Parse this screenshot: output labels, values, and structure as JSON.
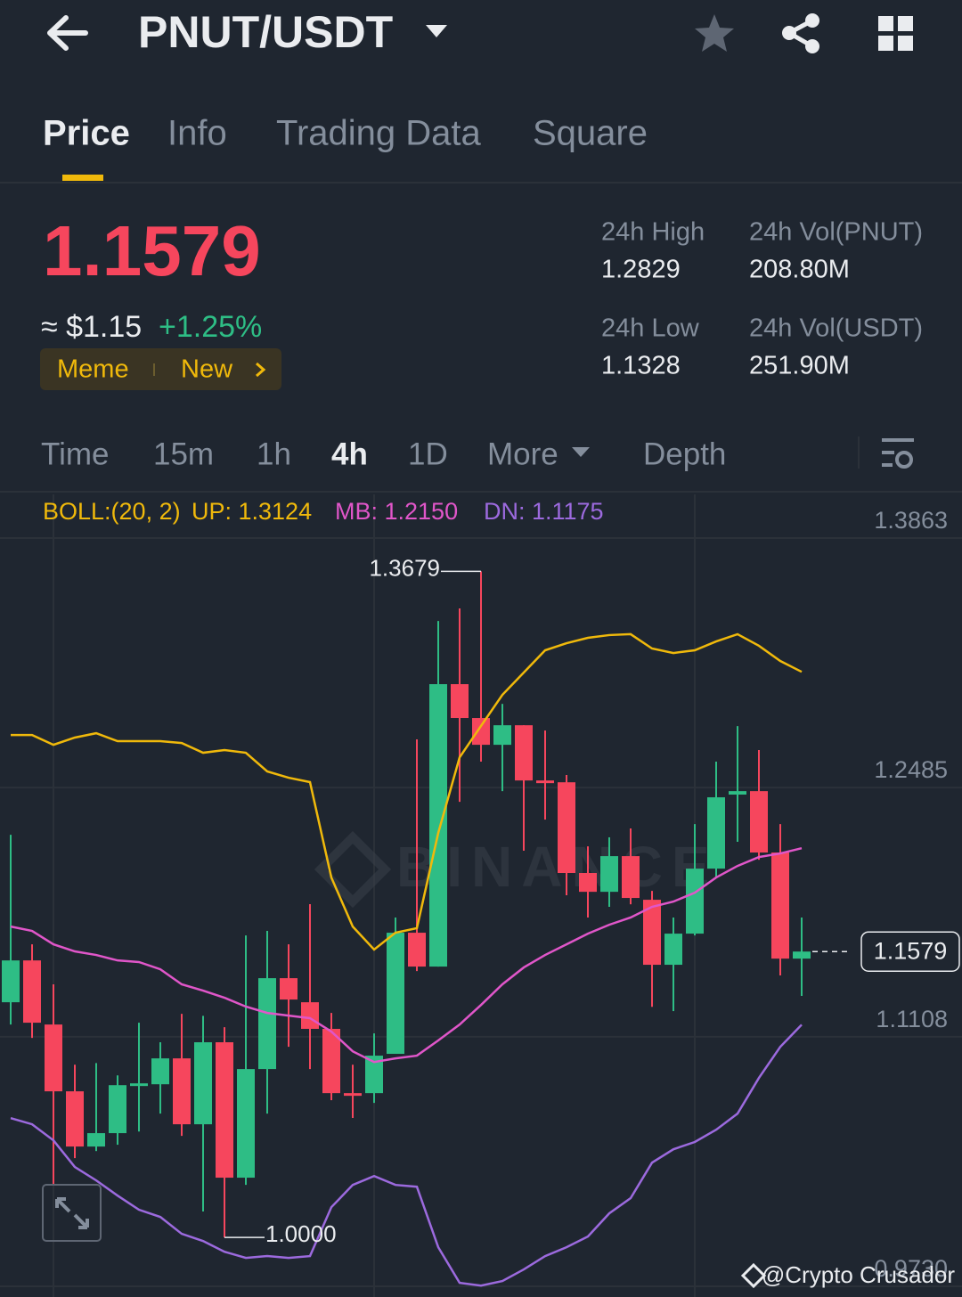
{
  "header": {
    "pair": "PNUT/USDT"
  },
  "tabs": [
    "Price",
    "Info",
    "Trading Data",
    "Square"
  ],
  "ticker": {
    "price": "1.1579",
    "fiat": "≈ $1.15",
    "change": "+1.25%",
    "tags": [
      "Meme",
      "New"
    ],
    "stats": [
      {
        "label": "24h High",
        "value": "1.2829"
      },
      {
        "label": "24h Vol(PNUT)",
        "value": "208.80M"
      },
      {
        "label": "24h Low",
        "value": "1.1328"
      },
      {
        "label": "24h Vol(USDT)",
        "value": "251.90M"
      }
    ]
  },
  "intervals": [
    "Time",
    "15m",
    "1h",
    "4h",
    "1D",
    "More",
    "Depth"
  ],
  "chart_data": {
    "type": "candlestick",
    "indicator": "BOLL:(20, 2)",
    "up_color": "#2ebd85",
    "down_color": "#f6465d",
    "ylim": [
      0.973,
      1.3863
    ],
    "yticks": [
      1.3863,
      1.2485,
      1.1108,
      {
        "value": 0.973,
        "label": "0.9730"
      }
    ],
    "grid": true,
    "open": [
      1.1299,
      1.153,
      1.1176,
      1.0807,
      1.0502,
      1.0576,
      1.0851,
      1.0846,
      1.0989,
      1.0625,
      1.1078,
      1.033,
      1.093,
      1.1432,
      1.1299,
      1.1152,
      1.0797,
      1.0797,
      1.1014,
      1.1683,
      1.1496,
      1.3056,
      1.2869,
      1.2721,
      1.2829,
      1.2524,
      1.2514,
      1.2013,
      1.1909,
      1.2106,
      1.1865,
      1.1506,
      1.1678,
      1.2037,
      1.2446,
      1.2465,
      1.2126,
      1.154
    ],
    "high": [
      1.2224,
      1.1619,
      1.1398,
      1.0954,
      1.0963,
      1.0895,
      1.1186,
      1.1078,
      1.1235,
      1.1224,
      1.1161,
      1.1668,
      1.1693,
      1.1619,
      1.1841,
      1.124,
      1.0954,
      1.1127,
      1.1767,
      1.2751,
      1.3405,
      1.3474,
      1.3679,
      1.2947,
      1.2829,
      1.28,
      1.2554,
      1.216,
      1.221,
      1.2259,
      1.1914,
      1.1767,
      1.2283,
      1.2628,
      1.2824,
      1.2692,
      1.2283,
      1.1767
    ],
    "low": [
      1.1176,
      1.1102,
      1.029,
      1.0438,
      1.0477,
      1.0512,
      1.0585,
      1.0684,
      1.0561,
      1.0143,
      1.0,
      1.029,
      1.0684,
      1.1053,
      1.093,
      1.0758,
      1.066,
      1.0743,
      1.1014,
      1.1471,
      1.1496,
      1.2406,
      1.2628,
      1.2465,
      1.2136,
      1.2308,
      1.189,
      1.1767,
      1.1826,
      1.184,
      1.1274,
      1.125,
      1.1668,
      1.1988,
      1.2185,
      1.2086,
      1.1447,
      1.1334
    ],
    "close": [
      1.153,
      1.1186,
      1.0807,
      1.0502,
      1.0576,
      1.0841,
      1.0851,
      1.0989,
      1.0625,
      1.1078,
      1.033,
      1.093,
      1.1432,
      1.1314,
      1.1152,
      1.0797,
      1.0787,
      1.1004,
      1.1683,
      1.1496,
      1.3056,
      1.2869,
      1.2721,
      1.2829,
      1.2524,
      1.2514,
      1.2013,
      1.1909,
      1.2106,
      1.1875,
      1.1506,
      1.1678,
      1.2037,
      1.2431,
      1.2465,
      1.2126,
      1.154,
      1.1579
    ],
    "series": [
      {
        "name": "UP: 1.3124",
        "color": "#f0b90b",
        "values": [
          1.2775,
          1.2775,
          1.2721,
          1.2761,
          1.2785,
          1.2741,
          1.2741,
          1.2741,
          1.2731,
          1.2677,
          1.2692,
          1.2677,
          1.2574,
          1.2539,
          1.2515,
          1.1988,
          1.1717,
          1.159,
          1.1683,
          1.1708,
          1.2234,
          1.2652,
          1.2825,
          1.2997,
          1.312,
          1.3243,
          1.3282,
          1.3312,
          1.3327,
          1.3332,
          1.3253,
          1.3228,
          1.3243,
          1.3292,
          1.3332,
          1.3268,
          1.3184,
          1.3124
        ]
      },
      {
        "name": "MB: 1.2150",
        "color": "#e056c9",
        "values": [
          1.1717,
          1.1693,
          1.1619,
          1.158,
          1.156,
          1.153,
          1.1521,
          1.1481,
          1.1398,
          1.1363,
          1.1324,
          1.1275,
          1.124,
          1.1225,
          1.1211,
          1.1137,
          1.1028,
          1.0969,
          1.0989,
          1.1004,
          1.1088,
          1.1176,
          1.1284,
          1.1398,
          1.1491,
          1.156,
          1.1619,
          1.1678,
          1.1727,
          1.1767,
          1.1826,
          1.1855,
          1.1904,
          1.1988,
          1.2052,
          1.2101,
          1.2121,
          1.215
        ]
      },
      {
        "name": "DN: 1.1175",
        "color": "#9c6ade",
        "values": [
          1.0659,
          1.0625,
          1.0536,
          1.0389,
          1.0315,
          1.0231,
          1.0153,
          1.0113,
          1.002,
          0.998,
          0.9921,
          0.9887,
          0.9897,
          0.9887,
          0.9897,
          1.0167,
          1.029,
          1.0339,
          1.029,
          1.028,
          0.9946,
          0.9749,
          0.9734,
          0.9759,
          0.9823,
          0.9897,
          0.9946,
          1.0005,
          1.0133,
          1.0217,
          1.0413,
          1.0487,
          1.0527,
          1.0595,
          1.0684,
          1.0881,
          1.1053,
          1.1175
        ]
      }
    ],
    "max_marker": {
      "value": 1.3679,
      "label": "1.3679"
    },
    "min_marker": {
      "value": 1,
      "label": "1.0000"
    },
    "last_price": 1.1579
  },
  "watermark": "BINANCE",
  "credit": "@Crypto Crusador"
}
